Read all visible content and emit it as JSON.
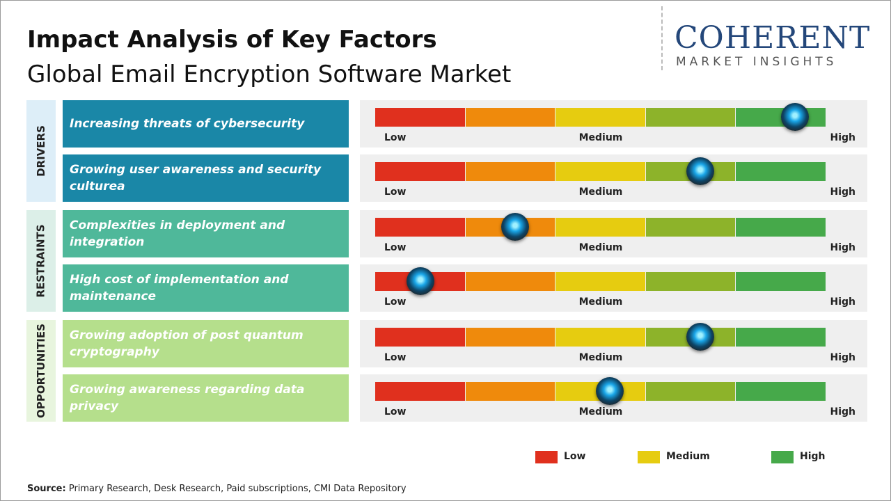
{
  "header": {
    "title": "Impact Analysis of Key Factors",
    "subtitle": "Global Email Encryption Software Market"
  },
  "logo": {
    "name": "COHERENT",
    "tagline": "MARKET INSIGHTS"
  },
  "segment_colors": [
    "#e0301e",
    "#ef8a0c",
    "#e6cc10",
    "#8db32a",
    "#46a94a"
  ],
  "scale_labels": [
    "Low",
    "Medium",
    "High"
  ],
  "groups": [
    {
      "label": "DRIVERS",
      "color": "#1a87a7",
      "tint": "#ddeef8",
      "factors": [
        {
          "text": "Increasing threats of cybersecurity",
          "impact": 4.65
        },
        {
          "text": "Growing user awareness and security culturea",
          "impact": 3.6
        }
      ]
    },
    {
      "label": "RESTRAINTS",
      "color": "#4fb89a",
      "tint": "#dcefe8",
      "factors": [
        {
          "text": "Complexities in deployment and integration",
          "impact": 1.55
        },
        {
          "text": "High cost of implementation and maintenance",
          "impact": 0.5
        }
      ]
    },
    {
      "label": "OPPORTUNITIES",
      "color": "#b5df8c",
      "tint": "#e8f5de",
      "factors": [
        {
          "text": "Growing adoption of post quantum cryptography",
          "impact": 3.6
        },
        {
          "text": "Growing awareness regarding data privacy",
          "impact": 2.6
        }
      ]
    }
  ],
  "legend": [
    {
      "label": "Low",
      "color": "#e0301e"
    },
    {
      "label": "Medium",
      "color": "#e6cc10"
    },
    {
      "label": "High",
      "color": "#46a94a"
    }
  ],
  "source": {
    "label": "Source:",
    "text": "Primary Research, Desk Research, Paid subscriptions, CMI Data Repository"
  }
}
